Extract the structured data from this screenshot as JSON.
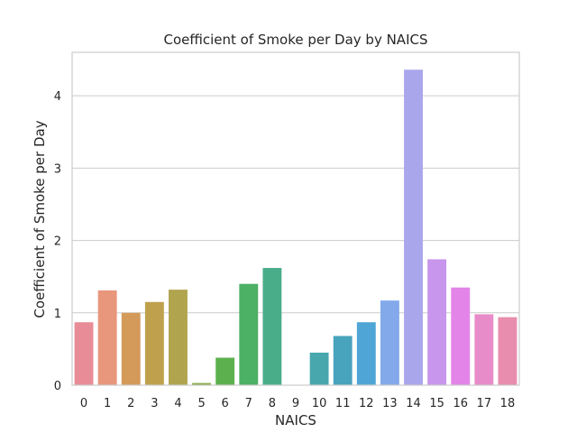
{
  "chart_data": {
    "type": "bar",
    "title": "Coefficient of Smoke per Day by NAICS",
    "xlabel": "NAICS",
    "ylabel": "Coefficient of Smoke per Day",
    "ylim": [
      0,
      4.6
    ],
    "yticks": [
      0,
      1,
      2,
      3,
      4
    ],
    "grid": "horizontal",
    "categories": [
      "0",
      "1",
      "2",
      "3",
      "4",
      "5",
      "6",
      "7",
      "8",
      "9",
      "10",
      "11",
      "12",
      "13",
      "14",
      "15",
      "16",
      "17",
      "18"
    ],
    "values": [
      0.87,
      1.31,
      1.0,
      1.15,
      1.32,
      0.03,
      0.38,
      1.4,
      1.62,
      0.0,
      0.45,
      0.68,
      0.87,
      1.17,
      4.36,
      1.74,
      1.35,
      0.98,
      0.94
    ],
    "colors": [
      "#e88d97",
      "#e8967c",
      "#d49a5a",
      "#bfa04c",
      "#b0a44e",
      "#8aac4b",
      "#5db04e",
      "#4cb065",
      "#4aad8a",
      "#46aa9e",
      "#47a7ad",
      "#48a3bd",
      "#4fa6d6",
      "#83a9ea",
      "#aaa6ec",
      "#c896ec",
      "#e384e8",
      "#e88bc9",
      "#e98dae"
    ]
  }
}
